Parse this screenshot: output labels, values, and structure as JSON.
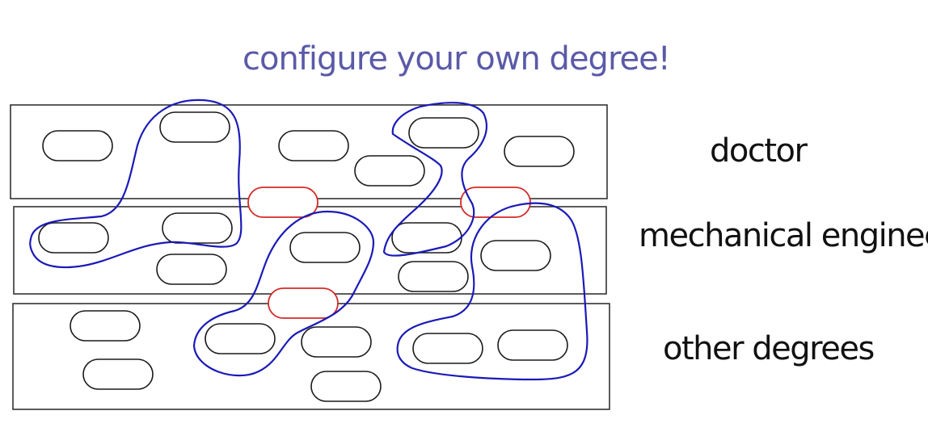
{
  "title": "configure your own degree!",
  "rows": [
    {
      "label": "doctor"
    },
    {
      "label": "mechanical engineer"
    },
    {
      "label": "other degrees"
    }
  ],
  "colors": {
    "title": "#5a5aa8",
    "course_outline": "#1a1a1a",
    "shared_course_outline": "#d42a2a",
    "path": "#1a1ab8"
  }
}
